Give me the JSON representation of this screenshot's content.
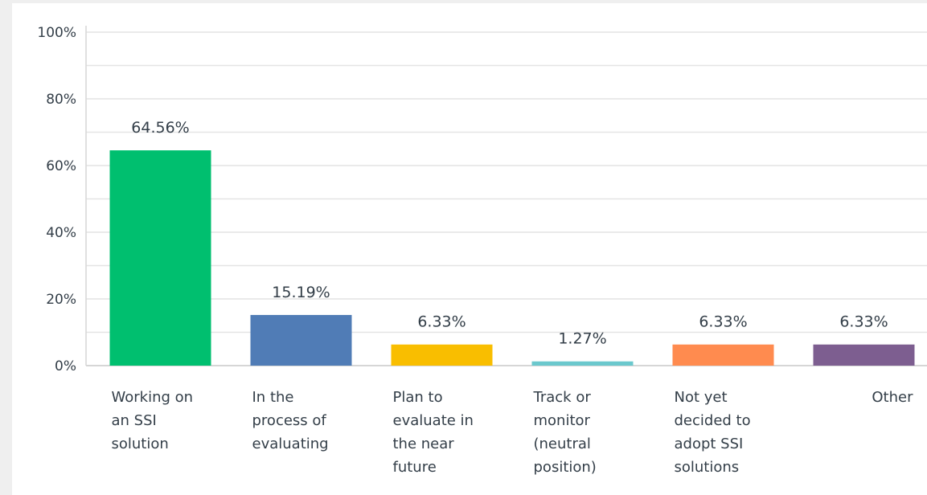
{
  "chart_data": {
    "type": "bar",
    "title": "",
    "xlabel": "",
    "ylabel": "",
    "ylim": [
      0,
      100
    ],
    "yticks": [
      "0%",
      "20%",
      "40%",
      "60%",
      "80%",
      "100%"
    ],
    "grid": true,
    "categories": [
      "Working on an SSI solution",
      "In the process of evaluating",
      "Plan to evaluate in the near future",
      "Track or monitor (neutral position)",
      "Not yet decided to adopt SSI solutions",
      "Other"
    ],
    "category_lines": [
      [
        "Working on",
        "an SSI",
        "solution"
      ],
      [
        "In the",
        "process of",
        "evaluating"
      ],
      [
        "Plan to",
        "evaluate in",
        "the near",
        "future"
      ],
      [
        "Track or",
        "monitor",
        "(neutral",
        "position)"
      ],
      [
        "Not yet",
        "decided to",
        "adopt SSI",
        "solutions"
      ],
      [
        "Other"
      ]
    ],
    "values": [
      64.56,
      15.19,
      6.33,
      1.27,
      6.33,
      6.33
    ],
    "value_labels": [
      "64.56%",
      "15.19%",
      "6.33%",
      "1.27%",
      "6.33%",
      "6.33%"
    ],
    "colors": [
      "#00bf6f",
      "#507cb6",
      "#f9be00",
      "#6bc8cd",
      "#ff8b4f",
      "#7d5e90"
    ]
  }
}
